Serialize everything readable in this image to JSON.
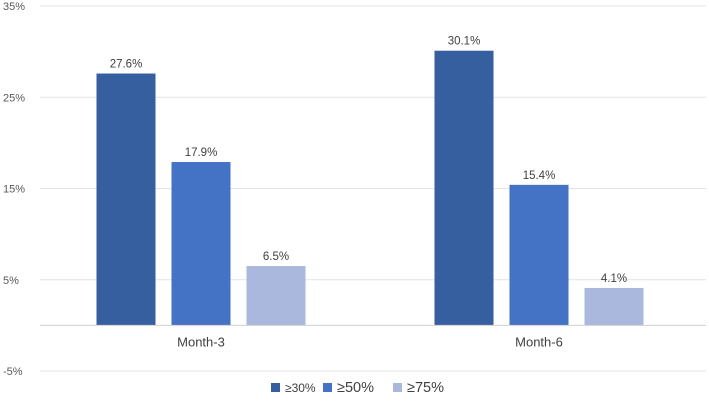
{
  "chart_data": {
    "type": "bar",
    "categories": [
      "Month-3",
      "Month-6"
    ],
    "series": [
      {
        "name": "≥30%",
        "values": [
          27.6,
          30.1
        ],
        "labels": [
          "27.6%",
          "30.1%"
        ],
        "color": "#365F9F"
      },
      {
        "name": "≥50%",
        "values": [
          17.9,
          15.4
        ],
        "labels": [
          "17.9%",
          "15.4%"
        ],
        "color": "#4472C4"
      },
      {
        "name": "≥75%",
        "values": [
          6.5,
          4.1
        ],
        "labels": [
          "6.5%",
          "4.1%"
        ],
        "color": "#A9B8DC"
      }
    ],
    "yticks": [
      {
        "value": 35,
        "label": "35%"
      },
      {
        "value": 25,
        "label": "25%"
      },
      {
        "value": 15,
        "label": "15%"
      },
      {
        "value": 5,
        "label": "5%"
      },
      {
        "value": -5,
        "label": "-5%"
      }
    ],
    "ylim": [
      -5,
      35
    ],
    "grid": true,
    "legend_position": "bottom",
    "title": "",
    "xlabel": "",
    "ylabel": ""
  }
}
